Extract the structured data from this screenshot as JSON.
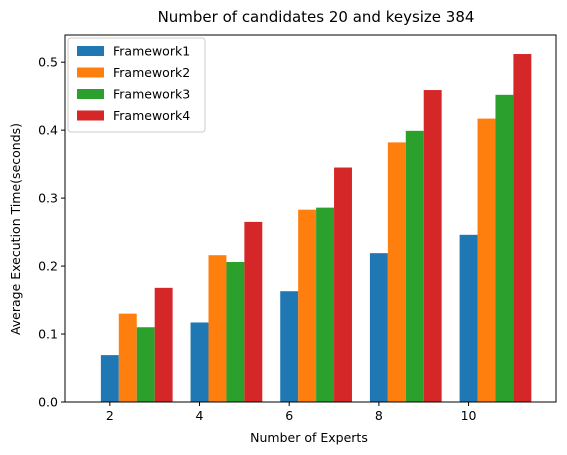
{
  "chart_data": {
    "type": "bar",
    "title": "Number of candidates 20 and keysize 384",
    "xlabel": "Number of Experts",
    "ylabel": "Average Execution Time(seconds)",
    "x": [
      2,
      4,
      6,
      8,
      10
    ],
    "xticks": [
      "2",
      "4",
      "6",
      "8",
      "10"
    ],
    "ylim": [
      0,
      0.54
    ],
    "yticks": [
      "0.0",
      "0.1",
      "0.2",
      "0.3",
      "0.4",
      "0.5"
    ],
    "grid": false,
    "legend_position": "top-left",
    "series": [
      {
        "name": "Framework1",
        "color": "#1f77b4",
        "values": [
          0.069,
          0.117,
          0.163,
          0.219,
          0.246
        ]
      },
      {
        "name": "Framework2",
        "color": "#ff7f0e",
        "values": [
          0.13,
          0.216,
          0.283,
          0.382,
          0.417
        ]
      },
      {
        "name": "Framework3",
        "color": "#2ca02c",
        "values": [
          0.11,
          0.206,
          0.286,
          0.399,
          0.452
        ]
      },
      {
        "name": "Framework4",
        "color": "#d62728",
        "values": [
          0.168,
          0.265,
          0.345,
          0.459,
          0.512
        ]
      }
    ]
  }
}
